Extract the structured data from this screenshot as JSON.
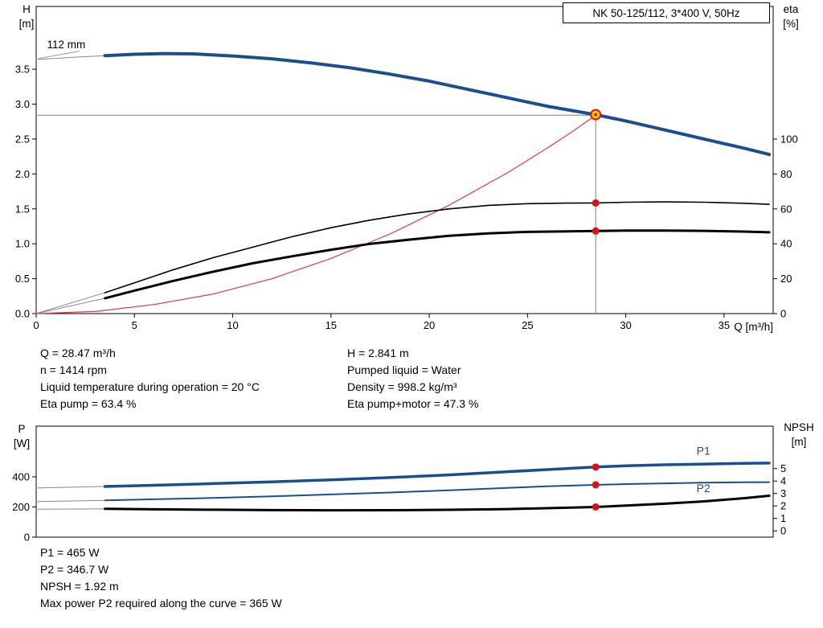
{
  "title_box": "NK 50-125/112, 3*400 V, 50Hz",
  "info_top_left": [
    "Q = 28.47 m³/h",
    "n = 1414 rpm",
    "Liquid temperature during operation = 20 °C",
    "Eta pump = 63.4 %"
  ],
  "info_top_right": [
    "H = 2.841 m",
    "Pumped liquid = Water",
    "Density = 998.2 kg/m³",
    "Eta pump+motor = 47.3 %"
  ],
  "info_bottom": [
    "P1 = 465 W",
    "P2 = 346.7 W",
    "NPSH = 1.92 m",
    "Max power P2 required along the curve = 365 W"
  ],
  "colors": {
    "curve_blue": "#1a4f8f",
    "curve_black": "#000000",
    "system_red": "#e03a3a",
    "duty_yellow": "#ffd600",
    "marker_red": "#e01010",
    "guide_gray": "#808080",
    "lead_gray": "#8a8a8a"
  },
  "chart_data": [
    {
      "type": "line",
      "name": "hq-chart",
      "title": "NK 50-125/112, 3*400 V, 50Hz",
      "x_axis": {
        "label": "Q [m³/h]",
        "min": 0,
        "max": 37.5,
        "show_tick_labels": true,
        "ticks": [
          {
            "v": 0,
            "l": "0"
          },
          {
            "v": 5,
            "l": "5"
          },
          {
            "v": 10,
            "l": "10"
          },
          {
            "v": 15,
            "l": "15"
          },
          {
            "v": 20,
            "l": "20"
          },
          {
            "v": 25,
            "l": "25"
          },
          {
            "v": 30,
            "l": "30"
          },
          {
            "v": 35,
            "l": "35"
          }
        ]
      },
      "y_left": {
        "title": "H",
        "unit": "[m]",
        "min": 0,
        "max": 4.4,
        "ticks": [
          {
            "v": 0,
            "l": "0.0"
          },
          {
            "v": 0.5,
            "l": "0.5"
          },
          {
            "v": 1,
            "l": "1.0"
          },
          {
            "v": 1.5,
            "l": "1.5"
          },
          {
            "v": 2,
            "l": "2.0"
          },
          {
            "v": 2.5,
            "l": "2.5"
          },
          {
            "v": 3,
            "l": "3.0"
          },
          {
            "v": 3.5,
            "l": "3.5"
          }
        ]
      },
      "y_right": {
        "title": "eta",
        "unit": "[%]",
        "min": 0,
        "max": 176,
        "ticks": [
          {
            "v": 0,
            "l": "0"
          },
          {
            "v": 20,
            "l": "20"
          },
          {
            "v": 40,
            "l": "40"
          },
          {
            "v": 60,
            "l": "60"
          },
          {
            "v": 80,
            "l": "80"
          },
          {
            "v": 100,
            "l": "100"
          }
        ]
      },
      "duty_point": {
        "q": 28.47,
        "h": 2.841,
        "eta_pump": 63.4,
        "eta_pump_motor": 47.3,
        "impeller": "112 mm"
      },
      "series": [
        {
          "name": "duty-h-guide",
          "axis": "left",
          "color": "#808080",
          "width": 1,
          "points": [
            [
              0,
              2.841
            ],
            [
              28.47,
              2.841
            ]
          ]
        },
        {
          "name": "duty-q-guide",
          "axis": "left",
          "color": "#808080",
          "width": 1,
          "points": [
            [
              28.47,
              0
            ],
            [
              28.47,
              2.85
            ]
          ]
        },
        {
          "name": "head-curve-lead",
          "axis": "left",
          "color": "#8a8a8a",
          "width": 1,
          "points": [
            [
              0,
              3.64
            ],
            [
              1.8,
              3.67
            ],
            [
              3.5,
              3.695
            ]
          ]
        },
        {
          "name": "eta-pump-lead",
          "axis": "left",
          "color": "#8a8a8a",
          "width": 1,
          "points": [
            [
              0,
              0
            ],
            [
              3.5,
              0.3
            ]
          ]
        },
        {
          "name": "eta-pump-motor-lead",
          "axis": "left",
          "color": "#8a8a8a",
          "width": 1,
          "points": [
            [
              0,
              0
            ],
            [
              3.5,
              0.22
            ]
          ]
        },
        {
          "name": "system-curve",
          "axis": "left",
          "color": "#e03a3a",
          "width": 1.2,
          "points": [
            [
              0,
              0
            ],
            [
              3,
              0.03
            ],
            [
              6,
              0.13
            ],
            [
              9,
              0.28
            ],
            [
              12,
              0.5
            ],
            [
              15,
              0.79
            ],
            [
              18,
              1.14
            ],
            [
              21,
              1.55
            ],
            [
              24,
              2.02
            ],
            [
              26,
              2.37
            ],
            [
              27.3,
              2.61
            ],
            [
              28.47,
              2.84
            ]
          ]
        },
        {
          "name": "eta-pump-curve",
          "axis": "left",
          "color": "#000000",
          "width": 1.6,
          "points": [
            [
              3.5,
              0.3
            ],
            [
              5,
              0.44
            ],
            [
              7,
              0.63
            ],
            [
              9,
              0.8
            ],
            [
              11,
              0.95
            ],
            [
              13,
              1.1
            ],
            [
              15,
              1.23
            ],
            [
              17,
              1.34
            ],
            [
              19,
              1.43
            ],
            [
              21,
              1.5
            ],
            [
              23,
              1.55
            ],
            [
              25,
              1.575
            ],
            [
              27,
              1.583
            ],
            [
              28.47,
              1.585
            ],
            [
              30,
              1.595
            ],
            [
              32,
              1.6
            ],
            [
              34,
              1.595
            ],
            [
              36,
              1.58
            ],
            [
              37.3,
              1.565
            ]
          ]
        },
        {
          "name": "eta-pump-motor-curve",
          "axis": "left",
          "color": "#000000",
          "width": 3,
          "points": [
            [
              3.5,
              0.22
            ],
            [
              5,
              0.33
            ],
            [
              7,
              0.47
            ],
            [
              9,
              0.6
            ],
            [
              11,
              0.72
            ],
            [
              13,
              0.82
            ],
            [
              15,
              0.915
            ],
            [
              17,
              1.0
            ],
            [
              19,
              1.06
            ],
            [
              21,
              1.115
            ],
            [
              23,
              1.15
            ],
            [
              25,
              1.17
            ],
            [
              27,
              1.178
            ],
            [
              28.47,
              1.183
            ],
            [
              30,
              1.19
            ],
            [
              32,
              1.19
            ],
            [
              34,
              1.185
            ],
            [
              36,
              1.175
            ],
            [
              37.3,
              1.165
            ]
          ]
        },
        {
          "name": "head-curve",
          "axis": "left",
          "color": "#1a4f8f",
          "width": 4,
          "points": [
            [
              3.5,
              3.695
            ],
            [
              5,
              3.715
            ],
            [
              6.5,
              3.725
            ],
            [
              8,
              3.72
            ],
            [
              10,
              3.69
            ],
            [
              12,
              3.65
            ],
            [
              14,
              3.59
            ],
            [
              16,
              3.52
            ],
            [
              18,
              3.43
            ],
            [
              20,
              3.33
            ],
            [
              22,
              3.21
            ],
            [
              24,
              3.09
            ],
            [
              26,
              2.97
            ],
            [
              28.47,
              2.85
            ],
            [
              30,
              2.76
            ],
            [
              32,
              2.63
            ],
            [
              34,
              2.5
            ],
            [
              36,
              2.37
            ],
            [
              37.3,
              2.28
            ]
          ]
        }
      ],
      "markers": [
        {
          "name": "duty-point",
          "axis": "left",
          "q": 28.47,
          "v": 2.85,
          "r": 6,
          "fill": "#ffd600",
          "stroke": "#e01010",
          "sw": 2,
          "interactable": true
        },
        {
          "name": "duty-point-center",
          "axis": "left",
          "q": 28.47,
          "v": 2.85,
          "r": 2,
          "fill": "#e01010",
          "stroke": "none",
          "sw": 0
        },
        {
          "name": "eta-pump-point",
          "axis": "left",
          "q": 28.47,
          "v": 1.585,
          "r": 4.5,
          "fill": "#e01010",
          "stroke": "none",
          "sw": 0
        },
        {
          "name": "eta-pump-motor-point",
          "axis": "left",
          "q": 28.47,
          "v": 1.183,
          "r": 4.5,
          "fill": "#e01010",
          "stroke": "none",
          "sw": 0
        }
      ],
      "annotations": [
        {
          "name": "impeller-label",
          "text": "112 mm",
          "axis": "left",
          "q": 0.55,
          "v": 3.8,
          "color": "#000000",
          "size": 13.5,
          "leader": [
            [
              0.12,
              3.655
            ],
            [
              2.2,
              3.76
            ]
          ]
        }
      ]
    },
    {
      "type": "line",
      "name": "power-npsh-chart",
      "x_axis": {
        "label": "",
        "min": 0,
        "max": 37.5,
        "show_tick_labels": false,
        "ticks": []
      },
      "y_left": {
        "title": "P",
        "unit": "[W]",
        "min": 0,
        "max": 736,
        "ticks": [
          {
            "v": 0,
            "l": "0"
          },
          {
            "v": 200,
            "l": "200"
          },
          {
            "v": 400,
            "l": "400"
          }
        ]
      },
      "y_right": {
        "title": "NPSH",
        "unit": "[m]",
        "min": -0.5,
        "max": 8.4,
        "ticks": [
          {
            "v": 0,
            "l": "0"
          },
          {
            "v": 1,
            "l": "1"
          },
          {
            "v": 2,
            "l": "2"
          },
          {
            "v": 3,
            "l": "3"
          },
          {
            "v": 4,
            "l": "4"
          },
          {
            "v": 5,
            "l": "5"
          }
        ]
      },
      "duty_point": {
        "q": 28.47,
        "p1_w": 465,
        "p2_w": 346.7,
        "npsh_m": 1.92
      },
      "series": [
        {
          "name": "p1-lead",
          "axis": "left",
          "color": "#8a8a8a",
          "width": 1,
          "points": [
            [
              0,
              326
            ],
            [
              3.5,
              336
            ]
          ]
        },
        {
          "name": "p2-lead",
          "axis": "left",
          "color": "#8a8a8a",
          "width": 1,
          "points": [
            [
              0,
              236
            ],
            [
              3.5,
              244
            ]
          ]
        },
        {
          "name": "npsh-lead",
          "axis": "right",
          "color": "#8a8a8a",
          "width": 1,
          "points": [
            [
              0,
              1.74
            ],
            [
              3.5,
              1.77
            ]
          ]
        },
        {
          "name": "p1-curve",
          "axis": "left",
          "color": "#1a4f8f",
          "width": 3.5,
          "points": [
            [
              3.5,
              336
            ],
            [
              6,
              344
            ],
            [
              9,
              355
            ],
            [
              12,
              367
            ],
            [
              15,
              380
            ],
            [
              18,
              395
            ],
            [
              21,
              413
            ],
            [
              24,
              434
            ],
            [
              26,
              448
            ],
            [
              28.47,
              465
            ],
            [
              30,
              473
            ],
            [
              32,
              480
            ],
            [
              34,
              485
            ],
            [
              36,
              489
            ],
            [
              37.3,
              491
            ]
          ]
        },
        {
          "name": "p2-curve",
          "axis": "left",
          "color": "#1a4f8f",
          "width": 2,
          "points": [
            [
              3.5,
              244
            ],
            [
              6,
              251
            ],
            [
              9,
              260
            ],
            [
              12,
              271
            ],
            [
              15,
              283
            ],
            [
              18,
              296
            ],
            [
              21,
              311
            ],
            [
              24,
              327
            ],
            [
              26,
              337
            ],
            [
              28.47,
              346.7
            ],
            [
              30,
              352
            ],
            [
              32,
              357
            ],
            [
              34,
              361
            ],
            [
              36,
              364
            ],
            [
              37.3,
              365
            ]
          ]
        },
        {
          "name": "npsh-curve",
          "axis": "right",
          "color": "#000000",
          "width": 3,
          "points": [
            [
              3.5,
              1.77
            ],
            [
              6,
              1.73
            ],
            [
              9,
              1.7
            ],
            [
              12,
              1.67
            ],
            [
              15,
              1.655
            ],
            [
              18,
              1.66
            ],
            [
              21,
              1.69
            ],
            [
              24,
              1.75
            ],
            [
              26,
              1.82
            ],
            [
              28.47,
              1.92
            ],
            [
              30,
              2.03
            ],
            [
              32,
              2.18
            ],
            [
              34,
              2.37
            ],
            [
              36,
              2.62
            ],
            [
              37.3,
              2.82
            ]
          ]
        }
      ],
      "markers": [
        {
          "name": "p1-point",
          "axis": "left",
          "q": 28.47,
          "v": 465,
          "r": 4.5,
          "fill": "#e01010",
          "stroke": "none",
          "sw": 0
        },
        {
          "name": "p2-point",
          "axis": "left",
          "q": 28.47,
          "v": 346.7,
          "r": 4.5,
          "fill": "#e01010",
          "stroke": "none",
          "sw": 0
        },
        {
          "name": "npsh-point",
          "axis": "right",
          "q": 28.47,
          "v": 1.92,
          "r": 4.5,
          "fill": "#e01010",
          "stroke": "none",
          "sw": 0
        }
      ],
      "annotations": [
        {
          "name": "p1-label",
          "text": "P1",
          "axis": "left",
          "q": 33.6,
          "v": 548,
          "color": "#1a4f8f",
          "size": 14
        },
        {
          "name": "p2-label",
          "text": "P2",
          "axis": "left",
          "q": 33.6,
          "v": 298,
          "color": "#1a4f8f",
          "size": 14
        }
      ]
    }
  ]
}
